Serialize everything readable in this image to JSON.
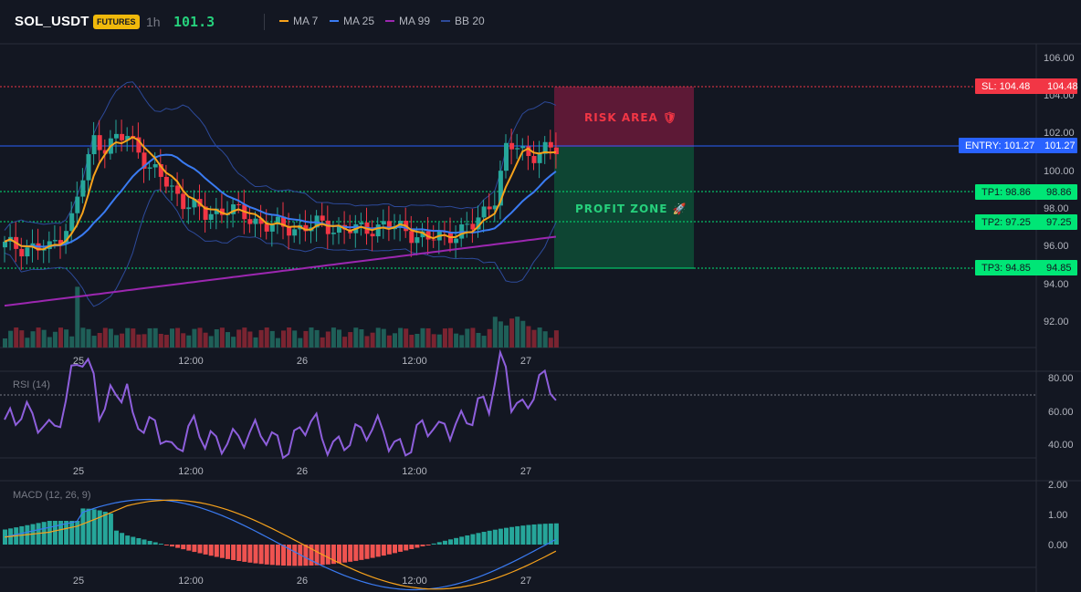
{
  "header": {
    "symbol": "SOL_USDT",
    "badge": "FUTURES",
    "timeframe": "1h",
    "last_price": "101.3",
    "indicators": [
      {
        "label": "MA 7",
        "color": "#f7a21b"
      },
      {
        "label": "MA 25",
        "color": "#3a7bf2"
      },
      {
        "label": "MA 99",
        "color": "#9c27b0"
      },
      {
        "label": "BB 20",
        "color": "#2d4a9a"
      }
    ]
  },
  "price_axis": {
    "ticks": [
      "106.00",
      "104.00",
      "102.00",
      "100.00",
      "98.00",
      "96.00",
      "94.00",
      "92.00"
    ]
  },
  "time_axis": {
    "ticks": [
      "25",
      "12:00",
      "26",
      "12:00",
      "27"
    ]
  },
  "levels": {
    "sl": {
      "label": "SL: 104.48",
      "price": "104.48",
      "color": "#f23645"
    },
    "entry": {
      "label": "ENTRY: 101.27",
      "price": "101.27",
      "color": "#2962ff"
    },
    "tp1": {
      "label": "TP1: 98.86",
      "price": "98.86",
      "color": "#00e676"
    },
    "tp2": {
      "label": "TP2: 97.25",
      "price": "97.25",
      "color": "#00e676"
    },
    "tp3": {
      "label": "TP3: 94.85",
      "price": "94.85",
      "color": "#00e676"
    }
  },
  "zones": {
    "risk": "RISK AREA 🛡",
    "profit": "PROFIT ZONE 🚀"
  },
  "rsi": {
    "label": "RSI (14)",
    "ticks": [
      "80.00",
      "60.00",
      "40.00"
    ]
  },
  "macd": {
    "label": "MACD (12, 26, 9)",
    "ticks": [
      "2.00",
      "1.00",
      "0.00"
    ]
  },
  "colors": {
    "up": "#26a69a",
    "down": "#f23645",
    "bg": "#131722"
  }
}
